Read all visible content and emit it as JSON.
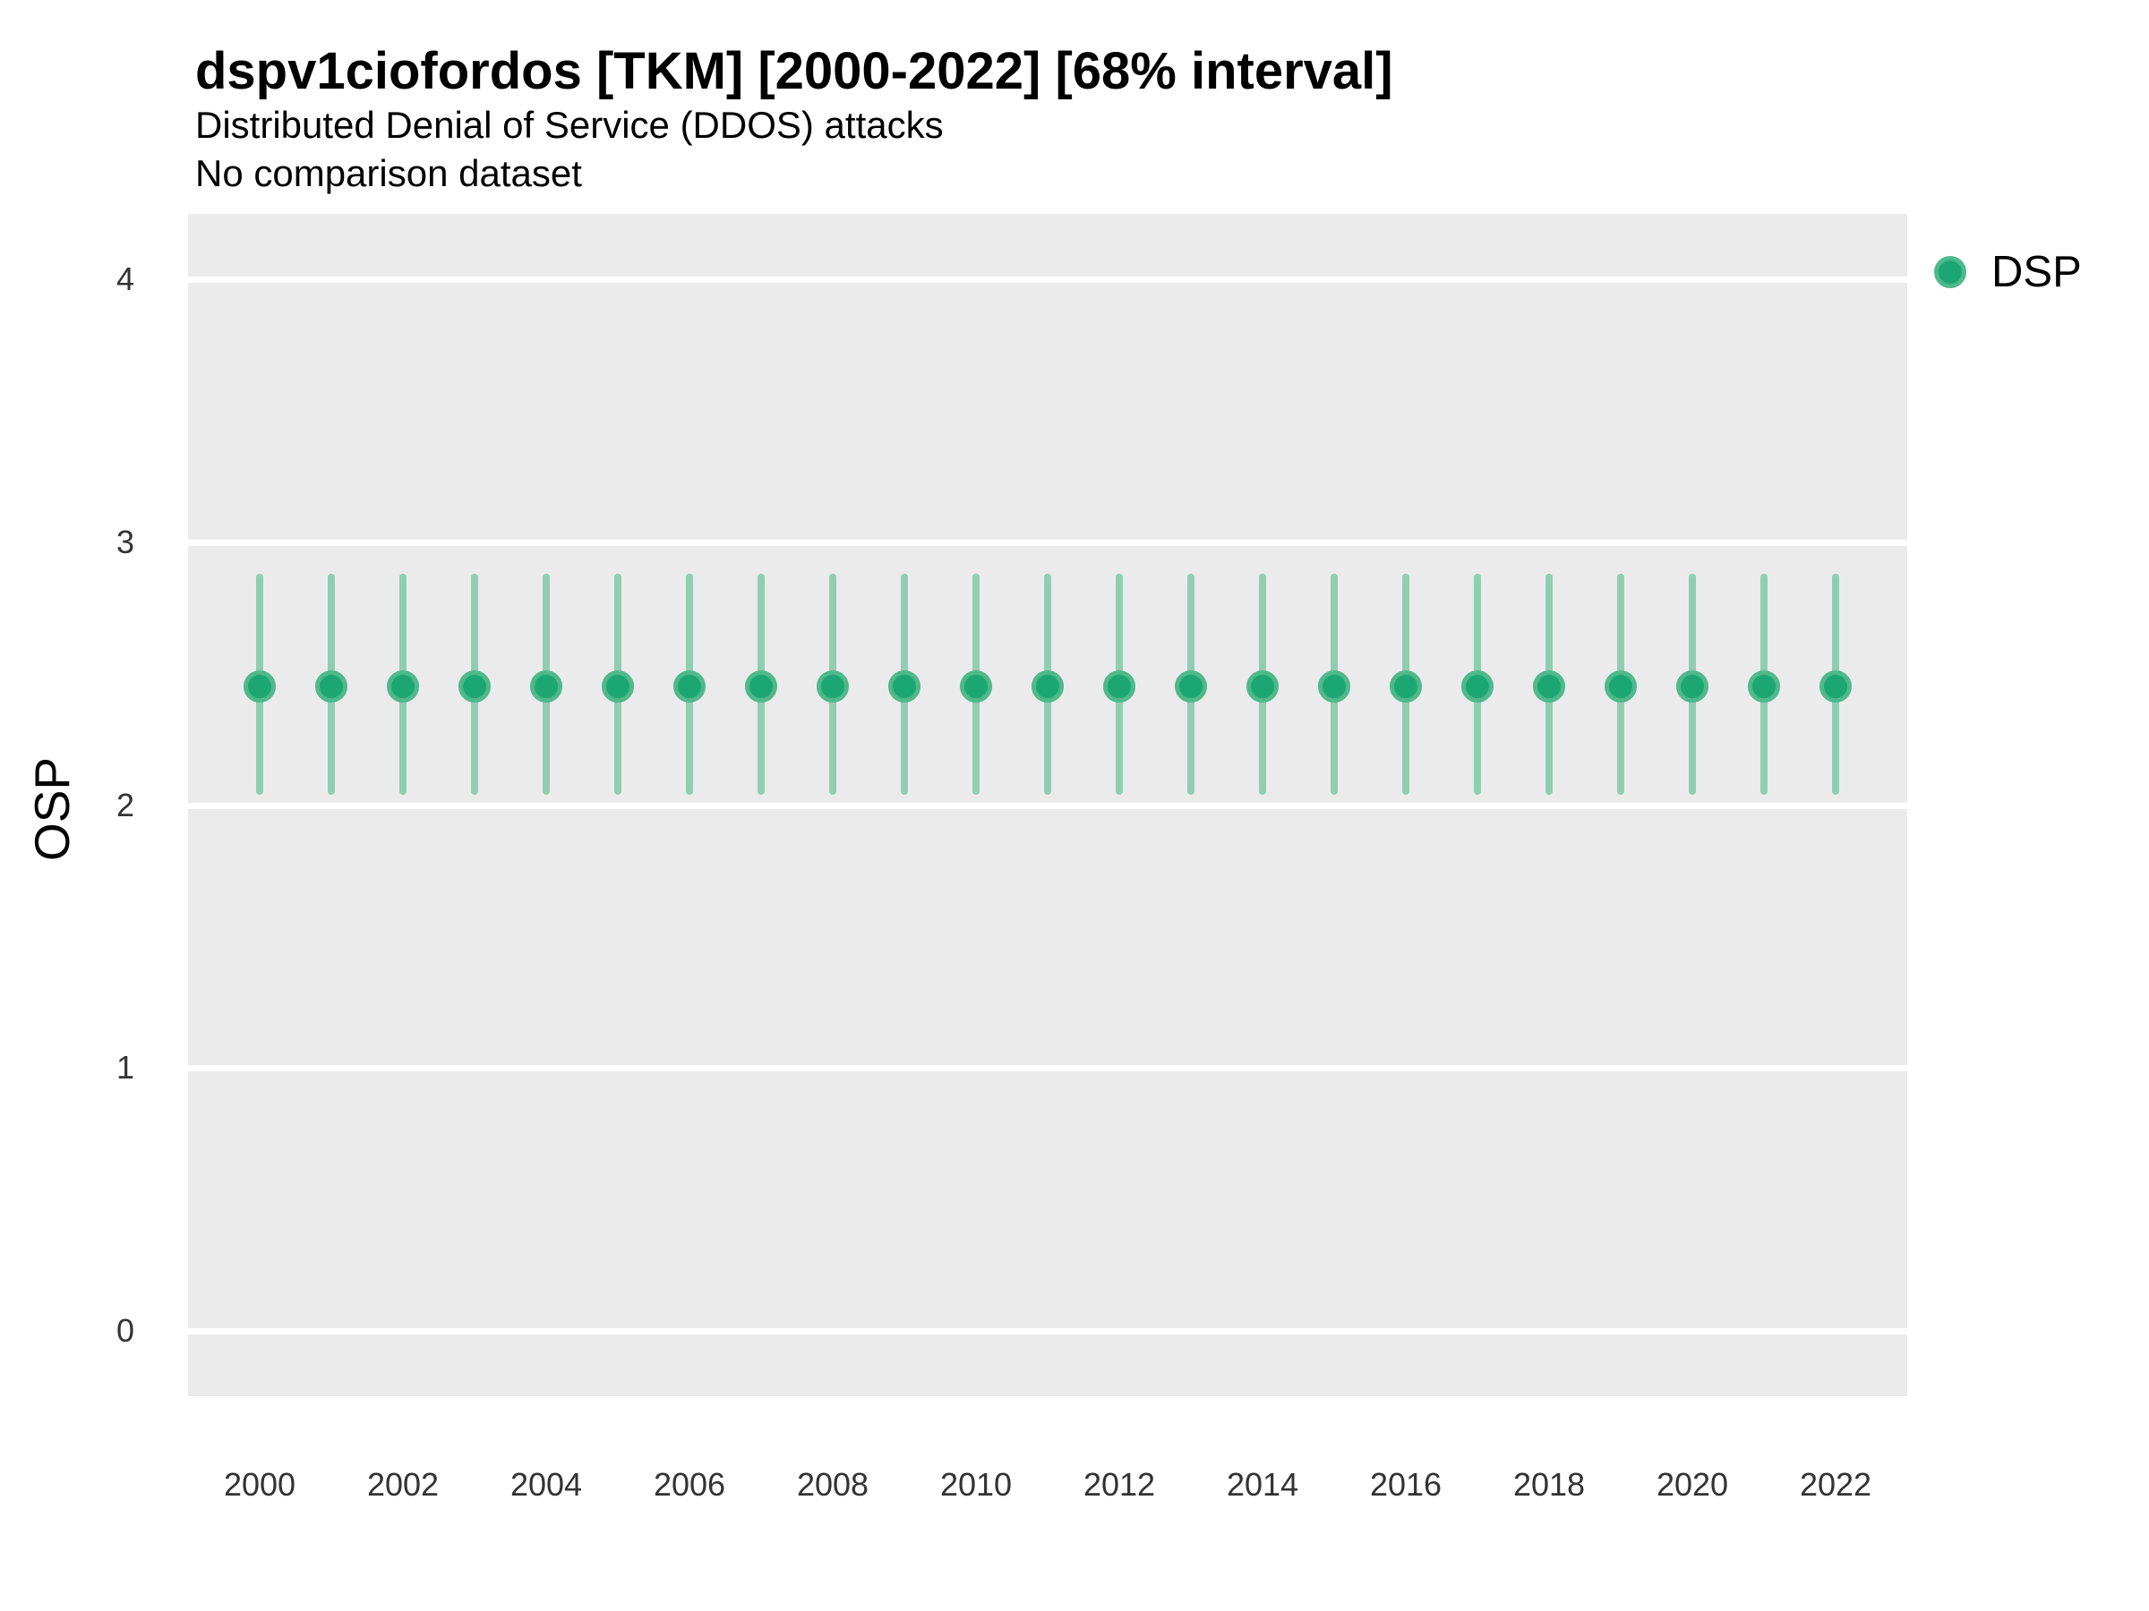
{
  "header": {
    "title": "dspv1ciofordos [TKM] [2000-2022] [68% interval]",
    "subtitle": "Distributed Denial of Service (DDOS) attacks",
    "note": "No comparison dataset"
  },
  "legend": {
    "items": [
      {
        "label": "DSP",
        "marker": "circle-icon"
      }
    ]
  },
  "axes": {
    "y_title": "OSP",
    "x_title": ""
  },
  "colors": {
    "panel_bg": "#EBEBEB",
    "gridline": "#FFFFFF",
    "interval_bar": "#8FCEB3",
    "point_fill": "#1CA673",
    "point_ring": "#4FB88C",
    "tick_text": "#333333",
    "title_text": "#000000"
  },
  "chart_data": {
    "type": "scatter",
    "subtype": "pointrange-interval",
    "title": "dspv1ciofordos [TKM] [2000-2022] [68% interval]",
    "subtitle": "Distributed Denial of Service (DDOS) attacks",
    "note": "No comparison dataset",
    "xlabel": "",
    "ylabel": "OSP",
    "interval": "68%",
    "xlim": [
      1999,
      2023
    ],
    "ylim": [
      -0.25,
      4.25
    ],
    "y_ticks": [
      0,
      1,
      2,
      3,
      4
    ],
    "x_tick_labels": [
      2000,
      2002,
      2004,
      2006,
      2008,
      2010,
      2012,
      2014,
      2016,
      2018,
      2020,
      2022
    ],
    "grid": "horizontal-major-only",
    "legend_position": "right-top",
    "series": [
      {
        "name": "DSP",
        "points": [
          {
            "x": 2000,
            "mid": 2.45,
            "lo": 2.04,
            "hi": 2.88
          },
          {
            "x": 2001,
            "mid": 2.45,
            "lo": 2.04,
            "hi": 2.88
          },
          {
            "x": 2002,
            "mid": 2.45,
            "lo": 2.04,
            "hi": 2.88
          },
          {
            "x": 2003,
            "mid": 2.45,
            "lo": 2.04,
            "hi": 2.88
          },
          {
            "x": 2004,
            "mid": 2.45,
            "lo": 2.04,
            "hi": 2.88
          },
          {
            "x": 2005,
            "mid": 2.45,
            "lo": 2.04,
            "hi": 2.88
          },
          {
            "x": 2006,
            "mid": 2.45,
            "lo": 2.04,
            "hi": 2.88
          },
          {
            "x": 2007,
            "mid": 2.45,
            "lo": 2.04,
            "hi": 2.88
          },
          {
            "x": 2008,
            "mid": 2.45,
            "lo": 2.04,
            "hi": 2.88
          },
          {
            "x": 2009,
            "mid": 2.45,
            "lo": 2.04,
            "hi": 2.88
          },
          {
            "x": 2010,
            "mid": 2.45,
            "lo": 2.04,
            "hi": 2.88
          },
          {
            "x": 2011,
            "mid": 2.45,
            "lo": 2.04,
            "hi": 2.88
          },
          {
            "x": 2012,
            "mid": 2.45,
            "lo": 2.04,
            "hi": 2.88
          },
          {
            "x": 2013,
            "mid": 2.45,
            "lo": 2.04,
            "hi": 2.88
          },
          {
            "x": 2014,
            "mid": 2.45,
            "lo": 2.04,
            "hi": 2.88
          },
          {
            "x": 2015,
            "mid": 2.45,
            "lo": 2.04,
            "hi": 2.88
          },
          {
            "x": 2016,
            "mid": 2.45,
            "lo": 2.04,
            "hi": 2.88
          },
          {
            "x": 2017,
            "mid": 2.45,
            "lo": 2.04,
            "hi": 2.88
          },
          {
            "x": 2018,
            "mid": 2.45,
            "lo": 2.04,
            "hi": 2.88
          },
          {
            "x": 2019,
            "mid": 2.45,
            "lo": 2.04,
            "hi": 2.88
          },
          {
            "x": 2020,
            "mid": 2.45,
            "lo": 2.04,
            "hi": 2.88
          },
          {
            "x": 2021,
            "mid": 2.45,
            "lo": 2.04,
            "hi": 2.88
          },
          {
            "x": 2022,
            "mid": 2.45,
            "lo": 2.04,
            "hi": 2.88
          }
        ]
      }
    ]
  }
}
